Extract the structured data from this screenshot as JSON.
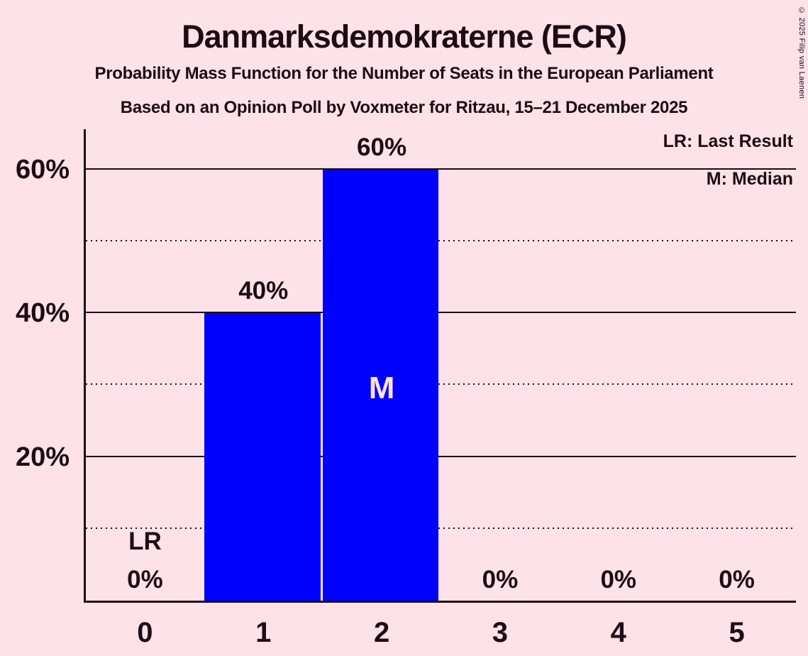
{
  "header": {
    "title": "Danmarksdemokraterne (ECR)",
    "subtitle": "Probability Mass Function for the Number of Seats in the European Parliament",
    "poll_line": "Based on an Opinion Poll by Voxmeter for Ritzau, 15–21 December 2025"
  },
  "copyright": "© 2025 Filip van Laenen",
  "legend": {
    "last_result": "LR: Last Result",
    "median": "M: Median"
  },
  "colors": {
    "background": "#fde2e8",
    "text": "#1e0b15",
    "bar": "#0000ff",
    "bar_annotation": "#fde2e8"
  },
  "chart_data": {
    "type": "bar",
    "title": "Danmarksdemokraterne (ECR)",
    "subtitle": "Probability Mass Function for the Number of Seats in the European Parliament",
    "source_line": "Based on an Opinion Poll by Voxmeter for Ritzau, 15–21 December 2025",
    "xlabel": "",
    "ylabel": "",
    "categories": [
      "0",
      "1",
      "2",
      "3",
      "4",
      "5"
    ],
    "values": [
      0,
      40,
      60,
      0,
      0,
      0
    ],
    "value_labels": [
      "0%",
      "40%",
      "60%",
      "0%",
      "0%",
      "0%"
    ],
    "ylim": [
      0,
      65.6
    ],
    "major_gridlines": [
      {
        "value": 20,
        "label": "20%"
      },
      {
        "value": 40,
        "label": "40%"
      },
      {
        "value": 60,
        "label": "60%"
      }
    ],
    "minor_gridlines": [
      10,
      30,
      50
    ],
    "grid": "horizontal",
    "legend_position": "top-right",
    "annotations": {
      "last_result": {
        "category": "0",
        "label": "LR"
      },
      "median": {
        "category": "2",
        "label": "M"
      }
    }
  }
}
